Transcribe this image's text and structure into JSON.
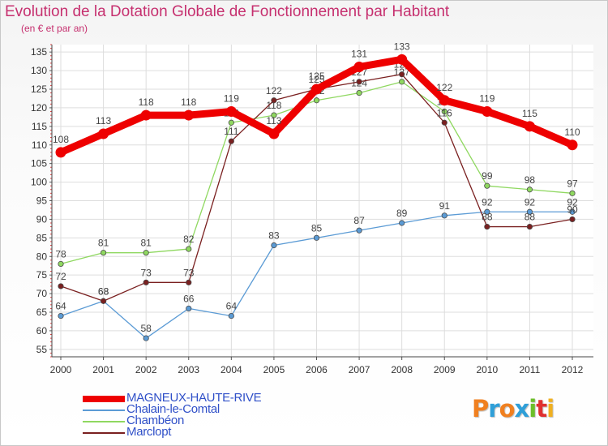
{
  "header": {
    "title": "Evolution de la Dotation Globale de Fonctionnement par Habitant",
    "subtitle": "(en € et par an)"
  },
  "logo": {
    "text": "Proxiti",
    "colors": [
      "#f08020",
      "#2f9fd8",
      "#f08020",
      "#2f9fd8",
      "#6cbf2a",
      "#e03030",
      "#f0b020"
    ]
  },
  "chart_data": {
    "type": "line",
    "title": "Evolution de la Dotation Globale de Fonctionnement par Habitant",
    "subtitle": "(en € et par an)",
    "xlabel": "",
    "ylabel": "",
    "categories": [
      "2000",
      "2001",
      "2002",
      "2003",
      "2004",
      "2005",
      "2006",
      "2007",
      "2008",
      "2009",
      "2010",
      "2011",
      "2012"
    ],
    "yticks": [
      55,
      60,
      65,
      70,
      75,
      80,
      85,
      90,
      95,
      100,
      105,
      110,
      115,
      120,
      125,
      130,
      135
    ],
    "ylim": [
      53,
      137
    ],
    "grid": true,
    "legend_position": "bottom-left",
    "series": [
      {
        "name": "MAGNEUX-HAUTE-RIVE",
        "color": "#ee0000",
        "width": "thick",
        "values": [
          108,
          113,
          118,
          118,
          119,
          113,
          125,
          131,
          133,
          122,
          119,
          115,
          110
        ]
      },
      {
        "name": "Chalain-le-Comtal",
        "color": "#5b9bd5",
        "values": [
          64,
          68,
          58,
          66,
          64,
          83,
          85,
          87,
          89,
          91,
          92,
          92,
          92
        ]
      },
      {
        "name": "Chambéon",
        "color": "#8fd860",
        "values": [
          78,
          81,
          81,
          82,
          116,
          118,
          122,
          124,
          127,
          119,
          99,
          98,
          97
        ]
      },
      {
        "name": "Marclopt",
        "color": "#7a2020",
        "values": [
          72,
          68,
          73,
          73,
          111,
          122,
          125,
          127,
          129,
          116,
          88,
          88,
          90
        ]
      }
    ]
  }
}
